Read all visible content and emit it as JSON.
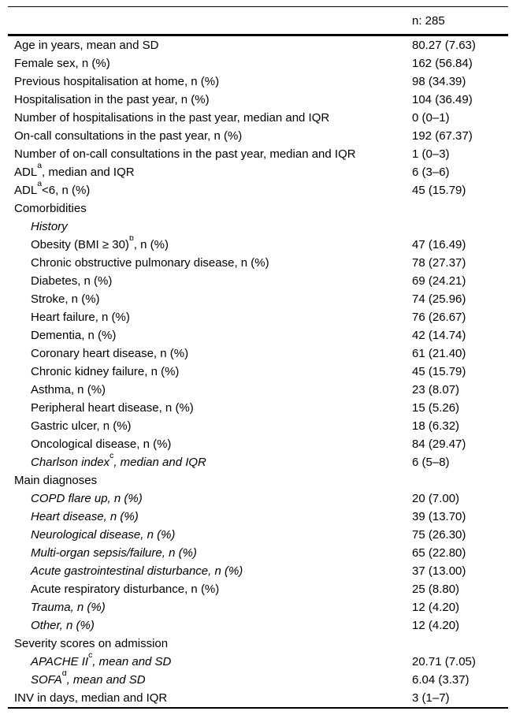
{
  "table": {
    "header": {
      "value": "n: 285"
    },
    "rows": [
      {
        "pre": "Age in years, mean and SD",
        "value": "80.27 (7.63)"
      },
      {
        "pre": "Female sex, n (%)",
        "value": "162 (56.84)"
      },
      {
        "pre": "Previous hospitalisation at home, n (%)",
        "value": "98 (34.39)"
      },
      {
        "pre": "Hospitalisation in the past year, n (%)",
        "value": "104 (36.49)"
      },
      {
        "pre": "Number of hospitalisations in the past year, median and IQR",
        "value": "0 (0–1)"
      },
      {
        "pre": "On-call consultations in the past year, n (%)",
        "value": "192 (67.37)"
      },
      {
        "pre": "Number of on-call consultations in the past year, median and IQR",
        "value": "1 (0–3)"
      },
      {
        "pre": "ADL",
        "sup": "a",
        "post": ", median and IQR",
        "value": "6 (3–6)"
      },
      {
        "pre": "ADL",
        "sup": "a",
        "post": "<6, n (%)",
        "value": "45 (15.79)"
      },
      {
        "pre": "Comorbidities",
        "value": ""
      },
      {
        "pre": "History",
        "indent": true,
        "italic": true,
        "value": ""
      },
      {
        "pre": "Obesity (BMI ≥ 30)",
        "sup": "b",
        "post": ", n (%)",
        "indent": true,
        "value": "47 (16.49)"
      },
      {
        "pre": "Chronic obstructive pulmonary disease, n (%)",
        "indent": true,
        "value": "78 (27.37)"
      },
      {
        "pre": "Diabetes, n (%)",
        "indent": true,
        "value": "69 (24.21)"
      },
      {
        "pre": "Stroke, n (%)",
        "indent": true,
        "value": "74 (25.96)"
      },
      {
        "pre": "Heart failure, n (%)",
        "indent": true,
        "value": "76 (26.67)"
      },
      {
        "pre": "Dementia, n (%)",
        "indent": true,
        "value": "42 (14.74)"
      },
      {
        "pre": "Coronary heart disease, n (%)",
        "indent": true,
        "value": "61 (21.40)"
      },
      {
        "pre": "Chronic kidney failure, n (%)",
        "indent": true,
        "value": "45 (15.79)"
      },
      {
        "pre": "Asthma, n (%)",
        "indent": true,
        "value": "23 (8.07)"
      },
      {
        "pre": "Peripheral heart disease, n (%)",
        "indent": true,
        "value": "15 (5.26)"
      },
      {
        "pre": "Gastric ulcer, n (%)",
        "indent": true,
        "value": "18 (6.32)"
      },
      {
        "pre": "Oncological disease, n (%)",
        "indent": true,
        "value": "84 (29.47)"
      },
      {
        "pre": "Charlson index",
        "sup": "c",
        "post": ", median and IQR",
        "indent": true,
        "italic": true,
        "value": "6 (5–8)"
      },
      {
        "pre": "Main diagnoses",
        "value": ""
      },
      {
        "pre": "COPD flare up, n (%)",
        "indent": true,
        "italic": true,
        "value": "20 (7.00)"
      },
      {
        "pre": "Heart disease, n (%)",
        "indent": true,
        "italic": true,
        "value": "39 (13.70)"
      },
      {
        "pre": "Neurological disease, n (%)",
        "indent": true,
        "italic": true,
        "value": "75 (26.30)"
      },
      {
        "pre": "Multi-organ sepsis/failure, n (%)",
        "indent": true,
        "italic": true,
        "value": "65 (22.80)"
      },
      {
        "pre": "Acute gastrointestinal disturbance, n (%)",
        "indent": true,
        "italic": true,
        "value": "37 (13.00)"
      },
      {
        "pre": "Acute respiratory disturbance, n (%)",
        "indent": true,
        "value": "25 (8.80)"
      },
      {
        "pre": "Trauma, n (%)",
        "indent": true,
        "italic": true,
        "value": "12 (4.20)"
      },
      {
        "pre": "Other, n (%)",
        "indent": true,
        "italic": true,
        "value": "12 (4.20)"
      },
      {
        "pre": "Severity scores on admission",
        "value": ""
      },
      {
        "pre": "APACHE II",
        "sup": "c",
        "post": ", mean and SD",
        "indent": true,
        "italic": true,
        "value": "20.71 (7.05)"
      },
      {
        "pre": "SOFA",
        "sup": "d",
        "post": ", mean and SD",
        "indent": true,
        "italic": true,
        "value": "6.04 (3.37)"
      },
      {
        "pre": "INV in days, median and IQR",
        "value": "3 (1–7)"
      }
    ]
  }
}
